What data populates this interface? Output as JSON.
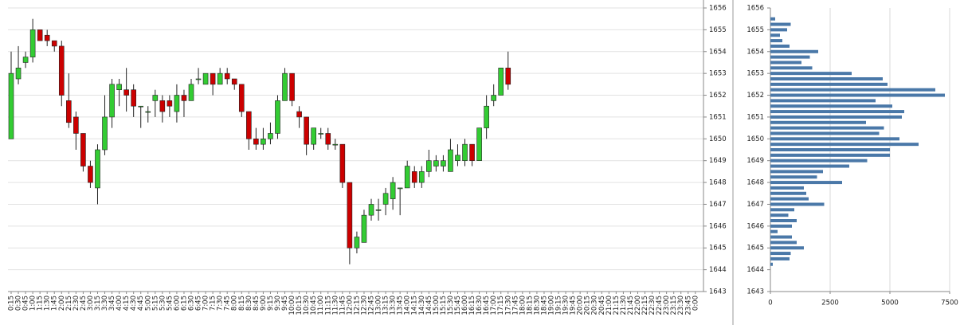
{
  "chart_data": [
    {
      "type": "candlestick",
      "categories": [
        "0:15",
        "0:30",
        "0:45",
        "1:00",
        "1:15",
        "1:30",
        "1:45",
        "2:00",
        "2:15",
        "2:30",
        "2:45",
        "3:00",
        "3:15",
        "3:30",
        "3:45",
        "4:00",
        "4:15",
        "4:30",
        "4:45",
        "5:00",
        "5:15",
        "5:30",
        "5:45",
        "6:00",
        "6:15",
        "6:30",
        "6:45",
        "7:00",
        "7:15",
        "7:30",
        "7:45",
        "8:00",
        "8:15",
        "8:30",
        "8:45",
        "9:00",
        "9:15",
        "9:30",
        "9:45",
        "10:00",
        "10:15",
        "10:30",
        "10:45",
        "11:00",
        "11:15",
        "11:30",
        "11:45",
        "12:00",
        "12:15",
        "12:30",
        "12:45",
        "13:00",
        "13:15",
        "13:30",
        "13:45",
        "14:00",
        "14:15",
        "14:30",
        "14:45",
        "15:00",
        "15:15",
        "15:30",
        "15:45",
        "16:00",
        "16:15",
        "16:30",
        "16:45",
        "17:00",
        "17:15",
        "17:30",
        "17:45",
        "18:00",
        "18:15",
        "18:30",
        "18:45",
        "19:00",
        "19:15",
        "19:30",
        "19:45",
        "20:00",
        "20:15",
        "20:30",
        "20:45",
        "21:00",
        "21:15",
        "21:30",
        "21:45",
        "22:00",
        "22:15",
        "22:30",
        "22:45",
        "23:00",
        "23:15",
        "23:30",
        "23:45",
        "0:00"
      ],
      "open": [
        1650,
        1652.75,
        1653.5,
        1653.75,
        1655,
        1654.75,
        1654.5,
        1654.25,
        1651.75,
        1651,
        1650.25,
        1648.75,
        1647.75,
        1649.5,
        1651,
        1652.25,
        1652.25,
        1652.25,
        1651.5,
        1651.25,
        1651.75,
        1651.75,
        1651.75,
        1651.25,
        1652,
        1651.75,
        1652.75,
        1652.5,
        1653,
        1652.5,
        1653,
        1652.75,
        1652.5,
        1651.25,
        1650,
        1649.75,
        1650,
        1650.25,
        1651.75,
        1653,
        1651.25,
        1651,
        1649.75,
        1650.25,
        1650.25,
        1649.75,
        1649.75,
        1648,
        1645,
        1645.25,
        1646.5,
        1646.75,
        1647,
        1647.25,
        1647.75,
        1647.75,
        1648.5,
        1648,
        1648.5,
        1648.75,
        1648.75,
        1648.5,
        1649,
        1649,
        1649.75,
        1649,
        1650.5,
        1651.75,
        1652,
        1653.25,
        null,
        null,
        null,
        null,
        null,
        null,
        null,
        null,
        null,
        null,
        null,
        null,
        null,
        null,
        null,
        null,
        null,
        null,
        null,
        null,
        null,
        null,
        null,
        null,
        null,
        null
      ],
      "high": [
        1654,
        1654.25,
        1654,
        1655.5,
        1655,
        1655,
        1654.5,
        1654.5,
        1653,
        1651.25,
        1650.25,
        1649,
        1649.75,
        1652,
        1652.75,
        1652.75,
        1653.25,
        1652.5,
        1651.5,
        1651.5,
        1652.25,
        1652,
        1652,
        1652.5,
        1652.25,
        1652.75,
        1653.25,
        1653,
        1653,
        1653.25,
        1653.25,
        1652.75,
        1652.5,
        1651.25,
        1650.5,
        1650.5,
        1650.75,
        1652,
        1653.25,
        1653,
        1651.5,
        1651,
        1650.5,
        1650.5,
        1650.5,
        1650,
        1649.75,
        1648,
        1645.75,
        1646.75,
        1647.25,
        1647.25,
        1647.75,
        1648.25,
        1647.75,
        1649,
        1648.75,
        1648.75,
        1649.5,
        1649.25,
        1649.25,
        1650,
        1649.75,
        1650,
        1649.75,
        1650.5,
        1652,
        1652.5,
        1653.25,
        1654,
        null,
        null,
        null,
        null,
        null,
        null,
        null,
        null,
        null,
        null,
        null,
        null,
        null,
        null,
        null,
        null,
        null,
        null,
        null,
        null,
        null,
        null,
        null,
        null,
        null,
        null
      ],
      "low": [
        1650,
        1652.5,
        1653.25,
        1653.5,
        1654.5,
        1654.25,
        1654,
        1651.5,
        1650.5,
        1649.5,
        1648.5,
        1647.75,
        1647,
        1649.25,
        1650.5,
        1651.5,
        1651.25,
        1651,
        1650.5,
        1650.75,
        1651,
        1650.75,
        1651,
        1650.75,
        1651,
        1651.75,
        1652.5,
        1652.5,
        1652,
        1652.5,
        1652.5,
        1652.25,
        1651,
        1649.5,
        1649.5,
        1649.5,
        1649.75,
        1650,
        1651.75,
        1651.5,
        1650.5,
        1649.25,
        1649.5,
        1650,
        1649.5,
        1649.5,
        1647.75,
        1644.25,
        1644.75,
        1645.25,
        1646.25,
        1646.25,
        1646.5,
        1646.75,
        1646.5,
        1647.75,
        1647.75,
        1647.75,
        1648.25,
        1648.5,
        1648.5,
        1648.5,
        1648.75,
        1648.75,
        1648.75,
        1649,
        1650,
        1651.5,
        1652,
        1652.25,
        null,
        null,
        null,
        null,
        null,
        null,
        null,
        null,
        null,
        null,
        null,
        null,
        null,
        null,
        null,
        null,
        null,
        null,
        null,
        null,
        null,
        null,
        null,
        null,
        null,
        null
      ],
      "close": [
        1653,
        1653.25,
        1653.75,
        1655,
        1654.5,
        1654.5,
        1654.25,
        1652,
        1650.75,
        1650.25,
        1648.75,
        1648,
        1649.5,
        1651,
        1652.5,
        1652.5,
        1652,
        1651.5,
        1651.5,
        1651.25,
        1652,
        1651.25,
        1651.5,
        1652,
        1651.75,
        1652.5,
        1652.75,
        1653,
        1652.5,
        1653,
        1652.75,
        1652.5,
        1651.25,
        1650,
        1649.75,
        1650,
        1650.25,
        1651.75,
        1653,
        1651.75,
        1651,
        1649.75,
        1650.5,
        1650.25,
        1649.75,
        1649.75,
        1648,
        1645,
        1645.5,
        1646.5,
        1647,
        1646.75,
        1647.5,
        1648,
        1647.75,
        1648.75,
        1648,
        1648.5,
        1649,
        1649,
        1649,
        1649.5,
        1649.25,
        1649.75,
        1649,
        1650.5,
        1651.5,
        1652,
        1653.25,
        1652.5,
        null,
        null,
        null,
        null,
        null,
        null,
        null,
        null,
        null,
        null,
        null,
        null,
        null,
        null,
        null,
        null,
        null,
        null,
        null,
        null,
        null,
        null,
        null,
        null,
        null,
        null
      ],
      "up_color": "#33cc33",
      "down_color": "#cc0000",
      "ylim": [
        1643,
        1656
      ],
      "yticks": [
        1643,
        1644,
        1645,
        1646,
        1647,
        1648,
        1649,
        1650,
        1651,
        1652,
        1653,
        1654,
        1655,
        1656
      ],
      "grid": true
    },
    {
      "type": "hbar",
      "y": [
        1655.5,
        1655.25,
        1655,
        1654.75,
        1654.5,
        1654.25,
        1654,
        1653.75,
        1653.5,
        1653.25,
        1653,
        1652.75,
        1652.5,
        1652.25,
        1652,
        1651.75,
        1651.5,
        1651.25,
        1651,
        1650.75,
        1650.5,
        1650.25,
        1650,
        1649.75,
        1649.5,
        1649.25,
        1649,
        1648.75,
        1648.5,
        1648.25,
        1648,
        1647.75,
        1647.5,
        1647.25,
        1647,
        1646.75,
        1646.5,
        1646.25,
        1646,
        1645.75,
        1645.5,
        1645.25,
        1645,
        1644.75,
        1644.5,
        1644.25
      ],
      "values": [
        200,
        850,
        700,
        400,
        500,
        800,
        2000,
        1650,
        1300,
        1750,
        3400,
        4700,
        4900,
        6900,
        7300,
        4400,
        5100,
        5600,
        5500,
        4000,
        4750,
        4550,
        5400,
        6200,
        5000,
        5000,
        4050,
        3300,
        2200,
        1950,
        3000,
        1400,
        1500,
        1600,
        2250,
        1000,
        750,
        1100,
        900,
        300,
        900,
        1100,
        1400,
        850,
        800,
        100
      ],
      "color": "#4a78a8",
      "xlim": [
        0,
        7500
      ],
      "xticks": [
        0,
        2500,
        5000,
        7500
      ],
      "ylim": [
        1643,
        1656
      ],
      "yticks": [
        1643,
        1644,
        1645,
        1646,
        1647,
        1648,
        1649,
        1650,
        1651,
        1652,
        1653,
        1654,
        1655,
        1656
      ],
      "grid": true
    }
  ]
}
